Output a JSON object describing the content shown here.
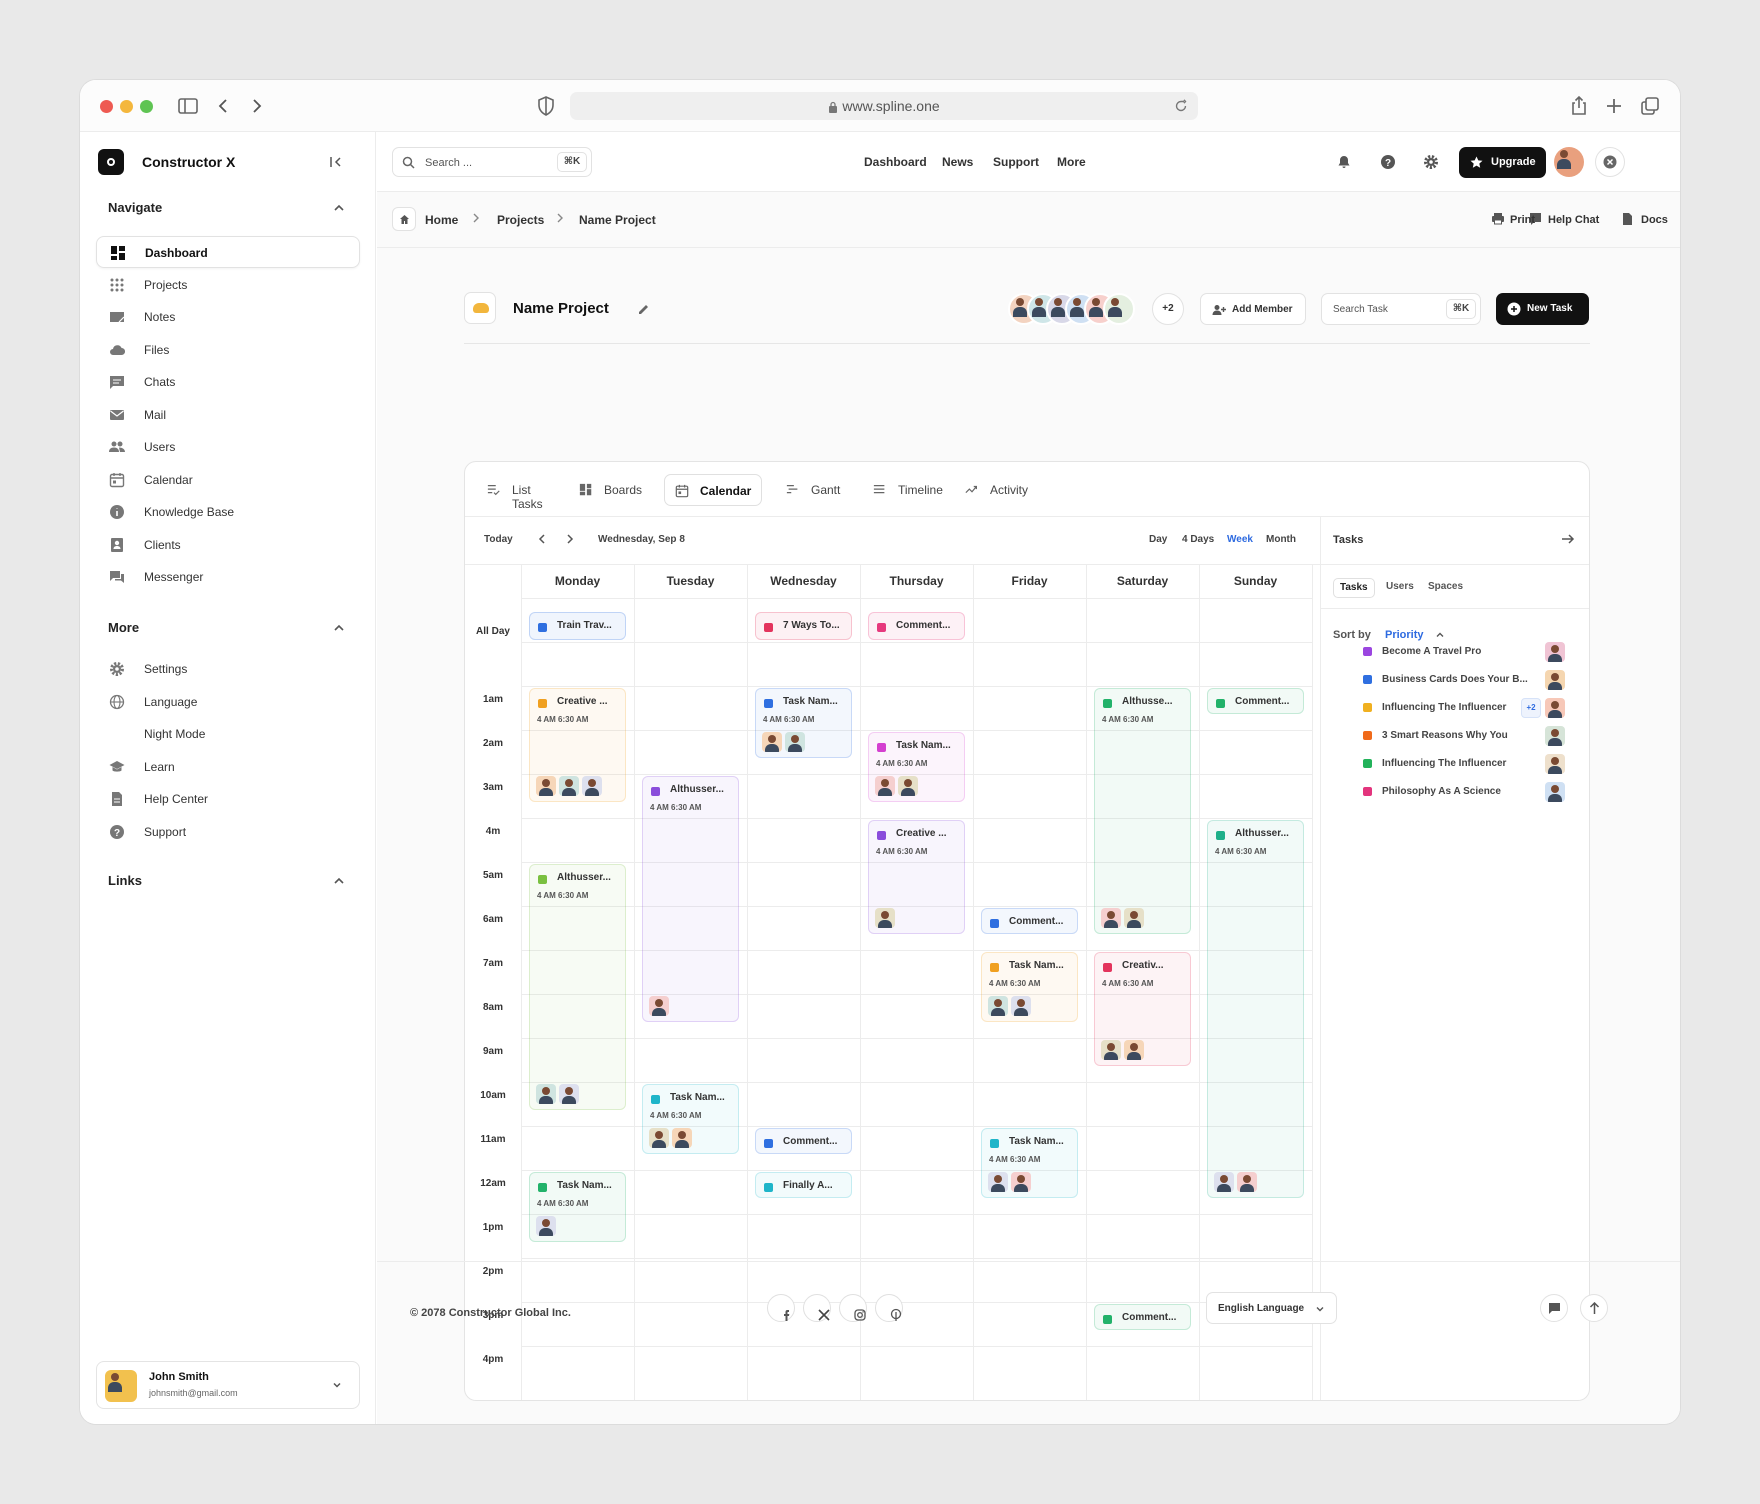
{
  "browser": {
    "url": "www.spline.one"
  },
  "sidebar": {
    "app_name": "Constructor X",
    "navigate_title": "Navigate",
    "navigate_items": [
      {
        "label": "Dashboard",
        "icon": "dashboard-icon",
        "active": true
      },
      {
        "label": "Projects",
        "icon": "grid-icon"
      },
      {
        "label": "Notes",
        "icon": "notes-icon"
      },
      {
        "label": "Files",
        "icon": "cloud-icon"
      },
      {
        "label": "Chats",
        "icon": "chat-icon"
      },
      {
        "label": "Mail",
        "icon": "mail-icon"
      },
      {
        "label": "Users",
        "icon": "users-icon"
      },
      {
        "label": "Calendar",
        "icon": "calendar-icon"
      },
      {
        "label": "Knowledge Base",
        "icon": "info-icon"
      },
      {
        "label": "Clients",
        "icon": "contact-icon"
      },
      {
        "label": "Messenger",
        "icon": "messenger-icon"
      }
    ],
    "more_title": "More",
    "more_items": [
      {
        "label": "Settings",
        "icon": "gear-icon"
      },
      {
        "label": "Language",
        "icon": "globe-icon"
      },
      {
        "label": "Night Mode",
        "icon": "moon-icon"
      },
      {
        "label": "Learn",
        "icon": "graduation-icon"
      },
      {
        "label": "Help Center",
        "icon": "document-icon"
      },
      {
        "label": "Support",
        "icon": "help-icon"
      }
    ],
    "links_title": "Links",
    "user": {
      "name": "John Smith",
      "email": "johnsmith@gmail.com"
    }
  },
  "header": {
    "search_placeholder": "Search ...",
    "search_shortcut": "⌘K",
    "nav": [
      "Dashboard",
      "News",
      "Support",
      "More"
    ],
    "upgrade_label": "Upgrade"
  },
  "breadcrumb": {
    "items": [
      "Home",
      "Projects",
      "Name Project"
    ],
    "actions": [
      "Help Chat",
      "Docs",
      "Print"
    ]
  },
  "project": {
    "name": "Name Project",
    "extra_members": "+2",
    "add_member_label": "Add Member",
    "search_task_placeholder": "Search Task",
    "search_task_shortcut": "⌘K",
    "new_task_label": "New Task"
  },
  "view_tabs": [
    {
      "label": "List Tasks",
      "icon": "list-check-icon"
    },
    {
      "label": "Boards",
      "icon": "boards-icon"
    },
    {
      "label": "Calendar",
      "icon": "calendar-icon",
      "active": true
    },
    {
      "label": "Gantt",
      "icon": "gantt-icon"
    },
    {
      "label": "Timeline",
      "icon": "timeline-icon"
    },
    {
      "label": "Activity",
      "icon": "activity-icon"
    }
  ],
  "calendar": {
    "today_label": "Today",
    "current_date": "Wednesday, Sep 8",
    "ranges": [
      "Day",
      "4 Days",
      "Week",
      "Month"
    ],
    "active_range": "Week",
    "all_day_label": "All Day",
    "days": [
      "Monday",
      "Tuesday",
      "Wednesday",
      "Thursday",
      "Friday",
      "Saturday",
      "Sunday"
    ],
    "hours": [
      "1am",
      "2am",
      "3am",
      "4m",
      "5am",
      "6am",
      "7am",
      "8am",
      "9am",
      "10am",
      "11am",
      "12am",
      "1pm",
      "2pm",
      "3pm",
      "4pm"
    ],
    "all_day_events": [
      {
        "day": 0,
        "title": "Train Trav...",
        "color": "#2f6fe0"
      },
      {
        "day": 2,
        "title": "7 Ways To...",
        "color": "#e3345d"
      },
      {
        "day": 3,
        "title": "Comment...",
        "color": "#e6397d"
      }
    ],
    "events": [
      {
        "day": 0,
        "start": 1.0,
        "end": 3.6,
        "title": "Creative ...",
        "time": "4 AM  6:30 AM",
        "color": "#f0a020",
        "avatars": 3
      },
      {
        "day": 0,
        "start": 5.0,
        "end": 10.6,
        "title": "Althusser...",
        "time": "4 AM  6:30 AM",
        "color": "#7ac040",
        "avatars": 2
      },
      {
        "day": 0,
        "start": 12.0,
        "end": 13.6,
        "title": "Task Nam...",
        "time": "4 AM  6:30 AM",
        "color": "#22b26a",
        "avatars": 1
      },
      {
        "day": 1,
        "start": 3.0,
        "end": 8.6,
        "title": "Althusser...",
        "time": "4 AM  6:30 AM",
        "color": "#8a4ddb",
        "avatars": 1
      },
      {
        "day": 1,
        "start": 10.0,
        "end": 11.6,
        "title": "Task Nam...",
        "time": "4 AM  6:30 AM",
        "color": "#1fb5c9",
        "avatars": 2
      },
      {
        "day": 2,
        "start": 1.0,
        "end": 2.6,
        "title": "Task Nam...",
        "time": "4 AM  6:30 AM",
        "color": "#2f6fe0",
        "avatars": 2
      },
      {
        "day": 2,
        "start": 11.0,
        "end": 11.6,
        "title": "Comment...",
        "color": "#2f6fe0"
      },
      {
        "day": 2,
        "start": 12.0,
        "end": 12.6,
        "title": "Finally A...",
        "color": "#1fb5c9"
      },
      {
        "day": 3,
        "start": 2.0,
        "end": 3.6,
        "title": "Task Nam...",
        "time": "4 AM  6:30 AM",
        "color": "#d43fd0",
        "avatars": 2
      },
      {
        "day": 3,
        "start": 4.0,
        "end": 6.6,
        "title": "Creative ...",
        "time": "4 AM  6:30 AM",
        "color": "#8a4ddb",
        "avatars": 1
      },
      {
        "day": 4,
        "start": 6.0,
        "end": 6.6,
        "title": "Comment...",
        "color": "#2f6fe0"
      },
      {
        "day": 4,
        "start": 7.0,
        "end": 8.6,
        "title": "Task Nam...",
        "time": "4 AM  6:30 AM",
        "color": "#f0a020",
        "avatars": 2
      },
      {
        "day": 4,
        "start": 11.0,
        "end": 12.6,
        "title": "Task Nam...",
        "time": "4 AM  6:30 AM",
        "color": "#1fb5c9",
        "avatars": 2
      },
      {
        "day": 5,
        "start": 1.0,
        "end": 6.6,
        "title": "Althusse...",
        "time": "4 AM  6:30 AM",
        "color": "#22b26a",
        "avatars": 2
      },
      {
        "day": 5,
        "start": 7.0,
        "end": 9.6,
        "title": "Creativ...",
        "time": "4 AM  6:30 AM",
        "color": "#e3345d",
        "avatars": 2
      },
      {
        "day": 5,
        "start": 15.0,
        "end": 15.6,
        "title": "Comment...",
        "color": "#22b26a"
      },
      {
        "day": 6,
        "start": 1.0,
        "end": 1.6,
        "title": "Comment...",
        "color": "#22b26a"
      },
      {
        "day": 6,
        "start": 4.0,
        "end": 12.6,
        "title": "Althusser...",
        "time": "4 AM  6:30 AM",
        "color": "#1fb08a",
        "avatars": 2
      }
    ]
  },
  "tasks_panel": {
    "title": "Tasks",
    "tabs": [
      "Tasks",
      "Users",
      "Spaces"
    ],
    "sort_label": "Sort by",
    "sort_value": "Priority",
    "items": [
      {
        "title": "Become A Travel Pro",
        "color": "#9b45e0"
      },
      {
        "title": "Business Cards Does Your B...",
        "color": "#2f6fe0"
      },
      {
        "title": "Influencing The Influencer",
        "color": "#f0b020",
        "extra": "+2"
      },
      {
        "title": "3 Smart Reasons Why You",
        "color": "#f06a1a"
      },
      {
        "title": "Influencing The Influencer",
        "color": "#22b25a"
      },
      {
        "title": "Philosophy As A Science",
        "color": "#e3347d"
      }
    ]
  },
  "footer": {
    "copyright": "© 2078 Constructor Global Inc.",
    "language": "English Language",
    "socials": [
      "facebook-icon",
      "x-icon",
      "instagram-icon",
      "pinterest-icon"
    ]
  }
}
